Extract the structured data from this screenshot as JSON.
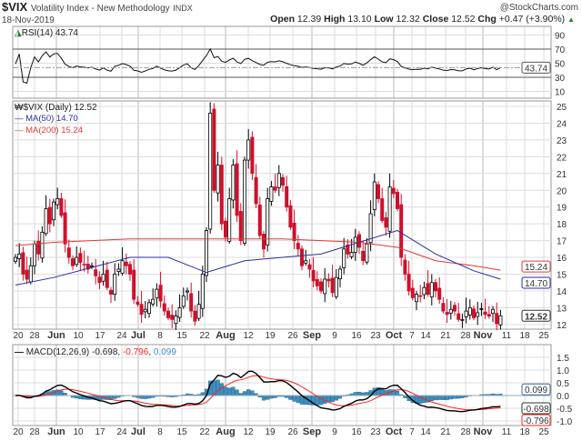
{
  "header": {
    "symbol": "$VIX",
    "name": "Volatility Index - New Methodology",
    "exchange": "INDX",
    "date": "18-Nov-2019",
    "watermark": "@StockCharts.com",
    "open_label": "Open",
    "open": "12.39",
    "high_label": "High",
    "high": "13.10",
    "low_label": "Low",
    "low": "12.32",
    "close_label": "Close",
    "close": "12.52",
    "chg_label": "Chg",
    "chg": "+0.47 (+3.90%)",
    "chg_icon": "up-triangle-icon"
  },
  "colors": {
    "up": "#000000",
    "down": "#d0102a",
    "ma50": "#2a2f9c",
    "ma200": "#e03a3a",
    "macd": "#000000",
    "signal": "#ff2020",
    "histogram": "#3d8fc0",
    "grid": "#dcdcdc"
  },
  "chart_data": [
    {
      "type": "line",
      "panel": "RSI",
      "legend": "RSI(14) 43.74",
      "last_value": "43.74",
      "y_ticks": [
        "90",
        "70",
        "50",
        "30",
        "10"
      ],
      "reference_lines": [
        70,
        30
      ],
      "ylim": [
        0,
        100
      ]
    },
    {
      "type": "candlestick",
      "panel": "price",
      "legend": "$VIX (Daily) 12.52",
      "series": [
        {
          "name": "MA(50) 14.70",
          "last_label": "14.70",
          "values_every_10_sessions": [
            14.35,
            14.8,
            15.4,
            16.0,
            16.0,
            15.1,
            15.8,
            16.0,
            16.2,
            16.9,
            17.6,
            16.2,
            15.2,
            14.7
          ]
        },
        {
          "name": "MA(200) 15.24",
          "last_label": "15.24",
          "values_every_10_sessions": [
            16.7,
            16.9,
            17.0,
            17.1,
            17.1,
            17.1,
            17.1,
            17.1,
            17.0,
            16.9,
            16.6,
            15.8,
            15.5,
            15.24
          ]
        }
      ],
      "closes": [
        16.0,
        16.2,
        15.0,
        14.7,
        15.5,
        16.8,
        16.2,
        17.5,
        18.9,
        18.0,
        19.3,
        19.5,
        18.5,
        16.8,
        16.0,
        15.5,
        16.0,
        15.7,
        15.6,
        15.3,
        15.5,
        14.9,
        14.5,
        15.0,
        14.2,
        13.8,
        15.0,
        15.3,
        15.8,
        15.5,
        15.0,
        13.5,
        13.2,
        12.6,
        12.9,
        13.3,
        13.5,
        14.1,
        13.4,
        12.8,
        12.4,
        12.3,
        12.5,
        13.0,
        13.7,
        14.0,
        12.8,
        12.2,
        13.2,
        15.0,
        17.6,
        24.6,
        20.0,
        21.5,
        18.0,
        17.2,
        19.5,
        21.5,
        18.5,
        17.0,
        21.8,
        23.0,
        21.0,
        19.2,
        17.3,
        16.5,
        19.5,
        20.2,
        20.0,
        21.0,
        20.3,
        19.0,
        17.8,
        17.0,
        16.5,
        15.5,
        15.8,
        15.3,
        14.6,
        14.3,
        14.0,
        14.7,
        14.6,
        13.9,
        14.8,
        15.3,
        16.5,
        16.2,
        16.3,
        17.2,
        16.6,
        15.8,
        16.8,
        18.6,
        20.5,
        19.5,
        18.2,
        17.8,
        20.2,
        19.8,
        18.9,
        16.0,
        15.0,
        14.0,
        13.6,
        13.8,
        13.7,
        14.2,
        13.8,
        14.5,
        14.0,
        13.5,
        12.8,
        12.6,
        12.9,
        12.8,
        12.3,
        12.3,
        12.8,
        13.0,
        12.4,
        12.7,
        12.9,
        12.6,
        12.5,
        12.9,
        12.05,
        12.52
      ],
      "last_close_label": "12.52",
      "y_ticks": [
        "25",
        "24",
        "23",
        "22",
        "21",
        "20",
        "19",
        "18",
        "17",
        "16",
        "15",
        "14",
        "13",
        "12"
      ],
      "ylim": [
        11.8,
        25.3
      ]
    },
    {
      "type": "line+bar",
      "panel": "MACD",
      "legend_name": "MACD(12,26,9)",
      "macd": "-0.698",
      "signal": "-0.796",
      "histogram": "0.099",
      "y_ticks": [
        "1.5",
        "1.0",
        "0.5",
        "0.0",
        "-0.5",
        "-1.0"
      ],
      "ylim": [
        -1.15,
        1.9
      ]
    }
  ],
  "x_axis": {
    "ticks": [
      "20",
      "28",
      "Jun",
      "10",
      "17",
      "24",
      "Jul",
      "8",
      "15",
      "22",
      "Aug",
      "12",
      "19",
      "26",
      "Sep",
      "9",
      "16",
      "23",
      "Oct",
      "7",
      "14",
      "21",
      "28",
      "Nov",
      "11",
      "18",
      "25"
    ],
    "month_ticks": [
      "Jun",
      "Jul",
      "Aug",
      "Sep",
      "Oct",
      "Nov"
    ]
  }
}
